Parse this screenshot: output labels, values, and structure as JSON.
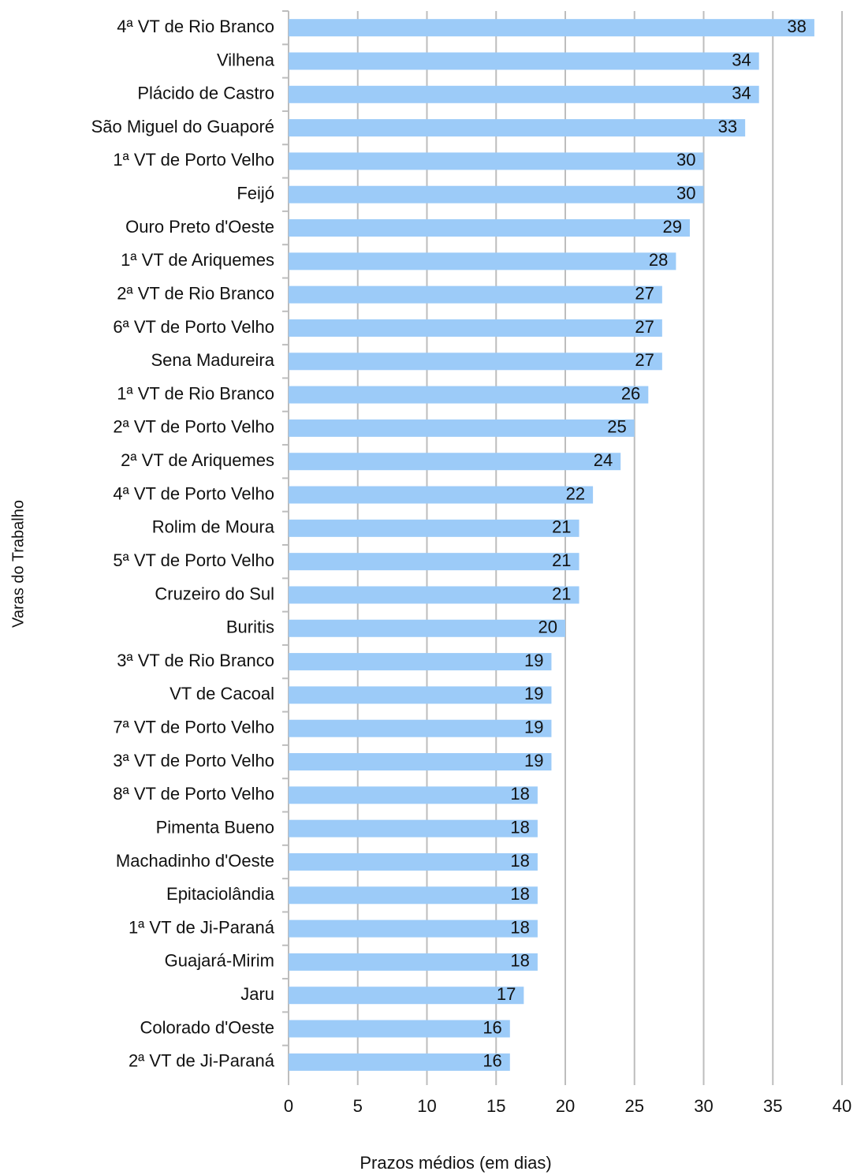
{
  "chart_data": {
    "type": "bar",
    "orientation": "horizontal",
    "x_label": "Prazos médios (em dias)",
    "y_label": "Varas do Trabalho",
    "categories": [
      "4ª VT de Rio Branco",
      "Vilhena",
      "Plácido de Castro",
      "São Miguel do Guaporé",
      "1ª VT de Porto Velho",
      "Feijó",
      "Ouro Preto d'Oeste",
      "1ª VT de Ariquemes",
      "2ª VT de Rio Branco",
      "6ª VT de Porto Velho",
      "Sena Madureira",
      "1ª VT de Rio Branco",
      "2ª VT de Porto Velho",
      "2ª VT de Ariquemes",
      "4ª VT de Porto Velho",
      "Rolim de Moura",
      "5ª VT de Porto Velho",
      "Cruzeiro do Sul",
      "Buritis",
      "3ª VT de Rio Branco",
      "VT de Cacoal",
      "7ª VT de Porto Velho",
      "3ª VT de Porto Velho",
      "8ª VT de Porto Velho",
      "Pimenta Bueno",
      "Machadinho d'Oeste",
      "Epitaciolândia",
      "1ª VT de Ji-Paraná",
      "Guajará-Mirim",
      "Jaru",
      "Colorado d'Oeste",
      "2ª VT de Ji-Paraná"
    ],
    "values": [
      38,
      34,
      34,
      33,
      30,
      30,
      29,
      28,
      27,
      27,
      27,
      26,
      25,
      24,
      22,
      21,
      21,
      21,
      20,
      19,
      19,
      19,
      19,
      18,
      18,
      18,
      18,
      18,
      18,
      17,
      16,
      16
    ],
    "color": "#9ccbf8",
    "xlim": [
      0,
      40
    ],
    "xticks": [
      0,
      5,
      10,
      15,
      20,
      25,
      30,
      35,
      40
    ],
    "grid": true
  }
}
